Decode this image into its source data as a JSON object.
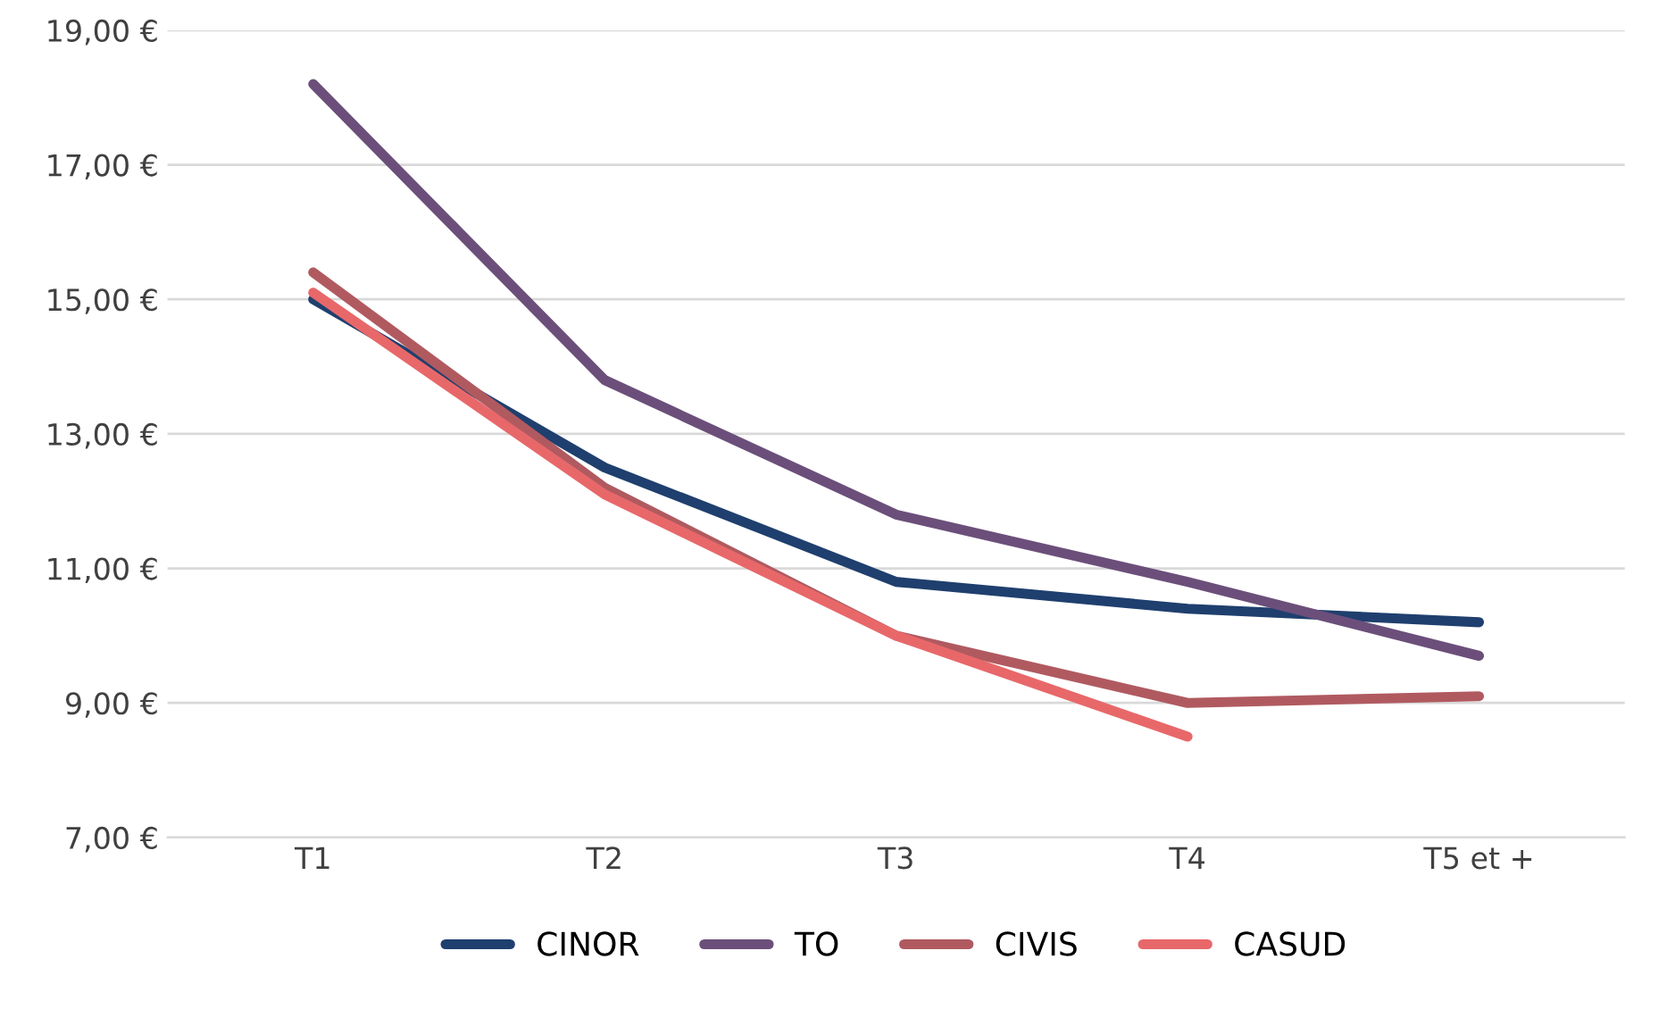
{
  "chart_data": {
    "type": "line",
    "categories": [
      "T1",
      "T2",
      "T3",
      "T4",
      "T5 et +"
    ],
    "series": [
      {
        "name": "CINOR",
        "color": "#1f3f6e",
        "values": [
          15.0,
          12.5,
          10.8,
          10.4,
          10.2
        ]
      },
      {
        "name": "TO",
        "color": "#6b4f7a",
        "values": [
          18.2,
          13.8,
          11.8,
          10.8,
          9.7
        ]
      },
      {
        "name": "CIVIS",
        "color": "#b05a60",
        "values": [
          15.4,
          12.2,
          10.0,
          9.0,
          9.1
        ]
      },
      {
        "name": "CASUD",
        "color": "#e8686a",
        "values": [
          15.1,
          12.1,
          10.0,
          8.5,
          null
        ]
      }
    ],
    "ylim": [
      7,
      19
    ],
    "yticks": [
      {
        "value": 7,
        "label": "7,00 €"
      },
      {
        "value": 9,
        "label": "9,00 €"
      },
      {
        "value": 11,
        "label": "11,00 €"
      },
      {
        "value": 13,
        "label": "13,00 €"
      },
      {
        "value": 15,
        "label": "15,00 €"
      },
      {
        "value": 17,
        "label": "17,00 €"
      },
      {
        "value": 19,
        "label": "19,00 €"
      }
    ],
    "grid": "y",
    "legend": "bottom",
    "marker": "none",
    "line_style": "solid"
  }
}
